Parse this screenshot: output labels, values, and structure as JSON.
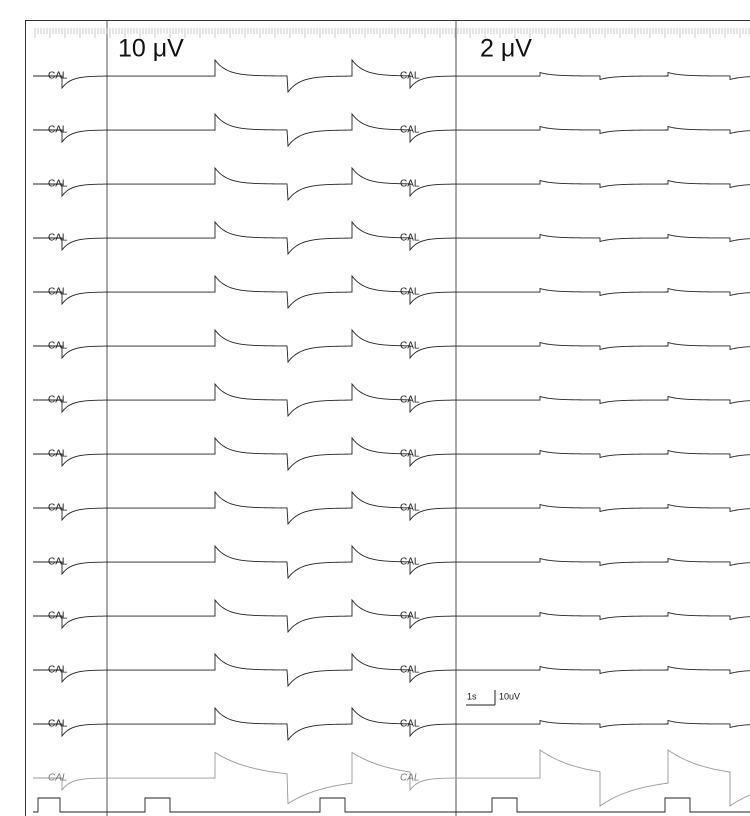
{
  "panels": [
    {
      "label": "10 μV",
      "channels": [
        "CAL",
        "CAL",
        "CAL",
        "CAL",
        "CAL",
        "CAL",
        "CAL",
        "CAL",
        "CAL",
        "CAL",
        "CAL",
        "CAL",
        "CAL",
        "CAL"
      ]
    },
    {
      "label": "2 μV",
      "channels": [
        "CAL",
        "CAL",
        "CAL",
        "CAL",
        "CAL",
        "CAL",
        "CAL",
        "CAL",
        "CAL",
        "CAL",
        "CAL",
        "CAL",
        "CAL",
        "CAL"
      ]
    }
  ],
  "scale_bar": {
    "time": "1s",
    "amplitude": "10uV"
  }
}
